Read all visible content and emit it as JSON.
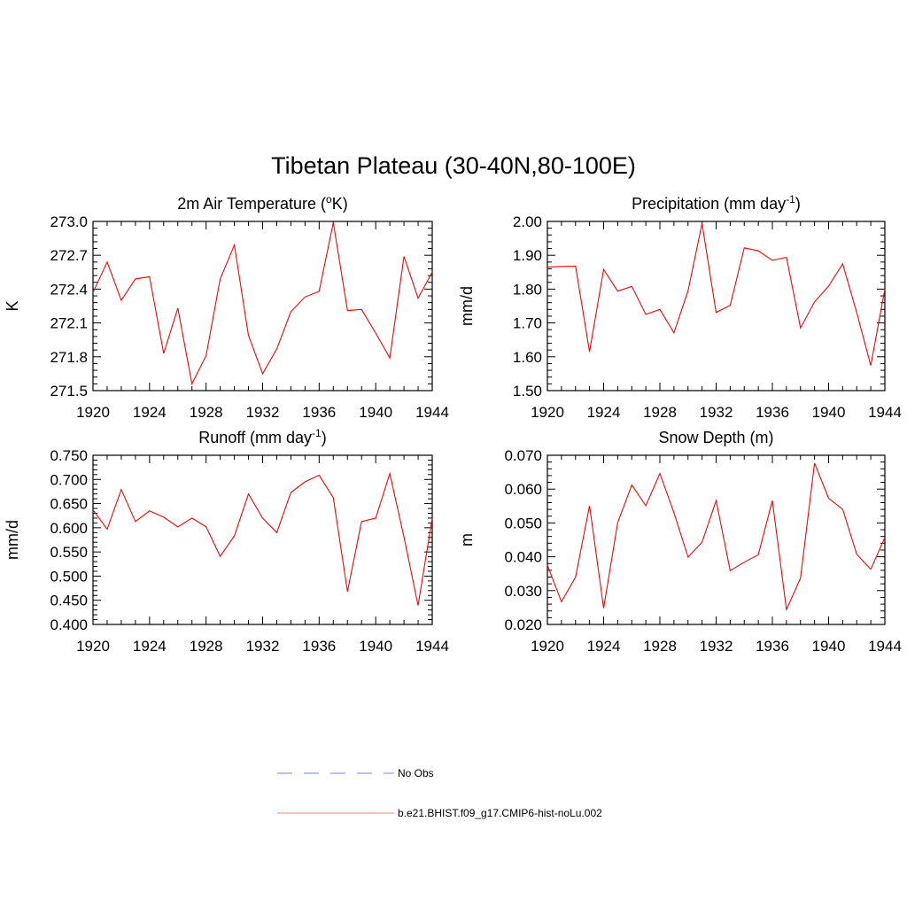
{
  "figure": {
    "title": "Tibetan Plateau (30-40N,80-100E)"
  },
  "legend": {
    "entries": [
      {
        "label": "No Obs",
        "color": "#9b9bf0",
        "style": "dashed"
      },
      {
        "label": "b.e21.BHIST.f09_g17.CMIP6-hist-noLu.002",
        "color": "#ff0000",
        "style": "solid"
      }
    ]
  },
  "chart_data": [
    {
      "type": "line",
      "title": "2m Air Temperature (",
      "title_sup": "o",
      "title_tail": "K)",
      "ylabel": "K",
      "xlim": [
        1920,
        1944
      ],
      "ylim": [
        271.5,
        273.0
      ],
      "xticks": [
        "1920",
        "1924",
        "1928",
        "1932",
        "1936",
        "1940",
        "1944"
      ],
      "yticks": [
        "273.0",
        "272.7",
        "272.4",
        "272.1",
        "271.8",
        "271.5"
      ],
      "x": [
        1920,
        1921,
        1922,
        1923,
        1924,
        1925,
        1926,
        1927,
        1928,
        1929,
        1930,
        1931,
        1932,
        1933,
        1934,
        1935,
        1936,
        1937,
        1938,
        1939,
        1940,
        1941,
        1942,
        1943,
        1944
      ],
      "series": [
        {
          "color": "#ff0000",
          "values": [
            272.37,
            272.64,
            272.3,
            272.49,
            272.51,
            271.83,
            272.23,
            271.56,
            271.81,
            272.49,
            272.79,
            271.99,
            271.65,
            271.87,
            272.2,
            272.33,
            272.38,
            272.99,
            272.21,
            272.22,
            272.01,
            271.79,
            272.69,
            272.32,
            272.55
          ]
        }
      ]
    },
    {
      "type": "line",
      "title": "Precipitation (mm day",
      "title_sup": "-1",
      "title_tail": ")",
      "ylabel": "mm/d",
      "xlim": [
        1920,
        1944
      ],
      "ylim": [
        1.5,
        2.0
      ],
      "xticks": [
        "1920",
        "1924",
        "1928",
        "1932",
        "1936",
        "1940",
        "1944"
      ],
      "yticks": [
        "2.00",
        "1.90",
        "1.80",
        "1.70",
        "1.60",
        "1.50"
      ],
      "x": [
        1920,
        1921,
        1922,
        1923,
        1924,
        1925,
        1926,
        1927,
        1928,
        1929,
        1930,
        1931,
        1932,
        1933,
        1934,
        1935,
        1936,
        1937,
        1938,
        1939,
        1940,
        1941,
        1942,
        1943,
        1944
      ],
      "series": [
        {
          "color": "#ff0000",
          "values": [
            1.865,
            1.867,
            1.868,
            1.615,
            1.858,
            1.794,
            1.808,
            1.725,
            1.74,
            1.671,
            1.795,
            1.994,
            1.731,
            1.752,
            1.922,
            1.913,
            1.885,
            1.894,
            1.685,
            1.762,
            1.809,
            1.875,
            1.73,
            1.574,
            1.8
          ]
        }
      ]
    },
    {
      "type": "line",
      "title": "Runoff (mm day",
      "title_sup": "-1",
      "title_tail": ")",
      "ylabel": "mm/d",
      "xlim": [
        1920,
        1944
      ],
      "ylim": [
        0.4,
        0.75
      ],
      "xticks": [
        "1920",
        "1924",
        "1928",
        "1932",
        "1936",
        "1940",
        "1944"
      ],
      "yticks": [
        "0.750",
        "0.700",
        "0.650",
        "0.600",
        "0.550",
        "0.500",
        "0.450",
        "0.400"
      ],
      "x": [
        1920,
        1921,
        1922,
        1923,
        1924,
        1925,
        1926,
        1927,
        1928,
        1929,
        1930,
        1931,
        1932,
        1933,
        1934,
        1935,
        1936,
        1937,
        1938,
        1939,
        1940,
        1941,
        1942,
        1943,
        1944
      ],
      "series": [
        {
          "color": "#ff0000",
          "values": [
            0.637,
            0.597,
            0.679,
            0.613,
            0.635,
            0.622,
            0.602,
            0.62,
            0.602,
            0.541,
            0.583,
            0.67,
            0.62,
            0.59,
            0.673,
            0.695,
            0.709,
            0.662,
            0.468,
            0.613,
            0.62,
            0.712,
            0.581,
            0.439,
            0.62
          ]
        }
      ]
    },
    {
      "type": "line",
      "title": "Snow Depth (m)",
      "title_sup": "",
      "title_tail": "",
      "ylabel": "m",
      "xlim": [
        1920,
        1944
      ],
      "ylim": [
        0.02,
        0.07
      ],
      "xticks": [
        "1920",
        "1924",
        "1928",
        "1932",
        "1936",
        "1940",
        "1944"
      ],
      "yticks": [
        "0.070",
        "0.060",
        "0.050",
        "0.040",
        "0.030",
        "0.020"
      ],
      "x": [
        1920,
        1921,
        1922,
        1923,
        1924,
        1925,
        1926,
        1927,
        1928,
        1929,
        1930,
        1931,
        1932,
        1933,
        1934,
        1935,
        1936,
        1937,
        1938,
        1939,
        1940,
        1941,
        1942,
        1943,
        1944
      ],
      "series": [
        {
          "color": "#ff0000",
          "values": [
            0.0375,
            0.0267,
            0.034,
            0.0551,
            0.0248,
            0.0501,
            0.0612,
            0.0551,
            0.0646,
            0.053,
            0.0399,
            0.0443,
            0.0566,
            0.0359,
            0.0384,
            0.0406,
            0.0566,
            0.0244,
            0.0337,
            0.0677,
            0.0573,
            0.054,
            0.0407,
            0.0363,
            0.0457
          ]
        }
      ]
    }
  ]
}
